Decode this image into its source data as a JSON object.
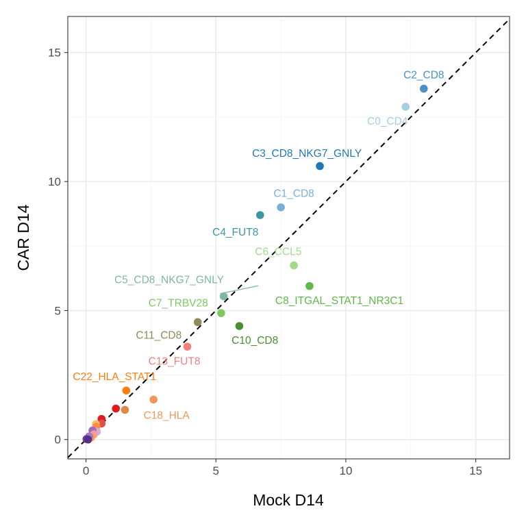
{
  "chart_data": {
    "type": "scatter",
    "xlabel": "Mock D14",
    "ylabel": "CAR D14",
    "xlim": [
      -0.7,
      16.3
    ],
    "ylim": [
      -0.75,
      16.4
    ],
    "x_ticks": [
      0,
      5,
      10,
      15
    ],
    "y_ticks": [
      0,
      5,
      10,
      15
    ],
    "x_tick_labels": [
      "0",
      "5",
      "10",
      "15"
    ],
    "y_tick_labels": [
      "0",
      "5",
      "10",
      "15"
    ],
    "grid": true,
    "reference_line": {
      "style": "dashed",
      "slope": 1,
      "intercept": 0,
      "color": "#000000"
    },
    "points": [
      {
        "label": "C2_CD8",
        "x": 13.0,
        "y": 13.6,
        "color": "#4a90c4",
        "label_color": "#4a90c4",
        "label_pos": [
          13.0,
          14.15
        ],
        "show_label": true
      },
      {
        "label": "C0_CD4",
        "x": 12.3,
        "y": 12.9,
        "color": "#a6cee3",
        "label_color": "#a6cee3",
        "label_pos": [
          11.6,
          12.35
        ],
        "show_label": true
      },
      {
        "label": "C3_CD8_NKG7_GNLY",
        "x": 9.0,
        "y": 10.6,
        "color": "#1f78b4",
        "label_color": "#1f78b4",
        "label_pos": [
          8.5,
          11.1
        ],
        "show_label": true
      },
      {
        "label": "C1_CD8",
        "x": 7.5,
        "y": 9.0,
        "color": "#7ab0d8",
        "label_color": "#7ab0d8",
        "label_pos": [
          8.0,
          9.55
        ],
        "show_label": true
      },
      {
        "label": "C4_FUT8",
        "x": 6.7,
        "y": 8.7,
        "color": "#3e95a6",
        "label_color": "#3e95a6",
        "label_pos": [
          5.75,
          8.05
        ],
        "show_label": true
      },
      {
        "label": "C6_CCL5",
        "x": 8.0,
        "y": 6.75,
        "color": "#a6d88b",
        "label_color": "#a6d88b",
        "label_pos": [
          7.4,
          7.3
        ],
        "show_label": true
      },
      {
        "label": "C8_ITGAL_STAT1_NR3C1",
        "x": 8.6,
        "y": 5.95,
        "color": "#5fb84a",
        "label_color": "#5fb84a",
        "label_pos": [
          9.75,
          5.4
        ],
        "show_label": true
      },
      {
        "label": "C5_CD8_NKG7_GNLY",
        "x": 5.3,
        "y": 5.55,
        "color": "#7eb8a0",
        "label_color": "#7eb8a0",
        "label_pos": [
          3.2,
          6.2
        ],
        "show_label": true,
        "leader": true
      },
      {
        "label": "C7_TRBV28",
        "x": 5.2,
        "y": 4.9,
        "color": "#7ec860",
        "label_color": "#7ec860",
        "label_pos": [
          3.55,
          5.3
        ],
        "show_label": true
      },
      {
        "label": "C11_CD8",
        "x": 4.3,
        "y": 4.55,
        "color": "#8e8c58",
        "label_color": "#8e8c58",
        "label_pos": [
          2.8,
          4.05
        ],
        "show_label": true
      },
      {
        "label": "C10_CD8",
        "x": 5.9,
        "y": 4.4,
        "color": "#4a8f32",
        "label_color": "#4a8f32",
        "label_pos": [
          6.5,
          3.85
        ],
        "show_label": true
      },
      {
        "label": "C13_FUT8",
        "x": 3.9,
        "y": 3.6,
        "color": "#f08080",
        "label_color": "#f08080",
        "label_pos": [
          3.4,
          3.05
        ],
        "show_label": true
      },
      {
        "label": "C22_HLA_STAT1",
        "x": 1.55,
        "y": 1.9,
        "color": "#ff7f0e",
        "label_color": "#ff7f0e",
        "label_pos": [
          1.1,
          2.45
        ],
        "show_label": true
      },
      {
        "label": "C18_HLA",
        "x": 2.6,
        "y": 1.55,
        "color": "#f0975a",
        "label_color": "#f0975a",
        "label_pos": [
          3.1,
          0.95
        ],
        "show_label": true
      },
      {
        "label": "",
        "x": 1.15,
        "y": 1.2,
        "color": "#e31a1c",
        "show_label": false
      },
      {
        "label": "",
        "x": 1.5,
        "y": 1.15,
        "color": "#e0874a",
        "show_label": false
      },
      {
        "label": "",
        "x": 0.6,
        "y": 0.8,
        "color": "#e31a1c",
        "show_label": false
      },
      {
        "label": "",
        "x": 0.6,
        "y": 0.62,
        "color": "#e0504a",
        "show_label": false
      },
      {
        "label": "",
        "x": 0.38,
        "y": 0.6,
        "color": "#fdbf6f",
        "show_label": false
      },
      {
        "label": "",
        "x": 0.4,
        "y": 0.5,
        "color": "#fd8d3c",
        "show_label": false
      },
      {
        "label": "",
        "x": 0.42,
        "y": 0.3,
        "color": "#cab2d6",
        "show_label": false
      },
      {
        "label": "",
        "x": 0.25,
        "y": 0.35,
        "color": "#9b6bc2",
        "show_label": false
      },
      {
        "label": "",
        "x": 0.3,
        "y": 0.2,
        "color": "#fb9a99",
        "show_label": false
      },
      {
        "label": "",
        "x": 0.2,
        "y": 0.08,
        "color": "#f4a340",
        "show_label": false
      },
      {
        "label": "",
        "x": 0.12,
        "y": 0.12,
        "color": "#9e7ac8",
        "show_label": false
      },
      {
        "label": "",
        "x": 0.02,
        "y": 0.02,
        "color": "#6a3d9a",
        "show_label": false
      },
      {
        "label": "",
        "x": 0.08,
        "y": 0.0,
        "color": "#5a2d8a",
        "show_label": false
      }
    ]
  }
}
